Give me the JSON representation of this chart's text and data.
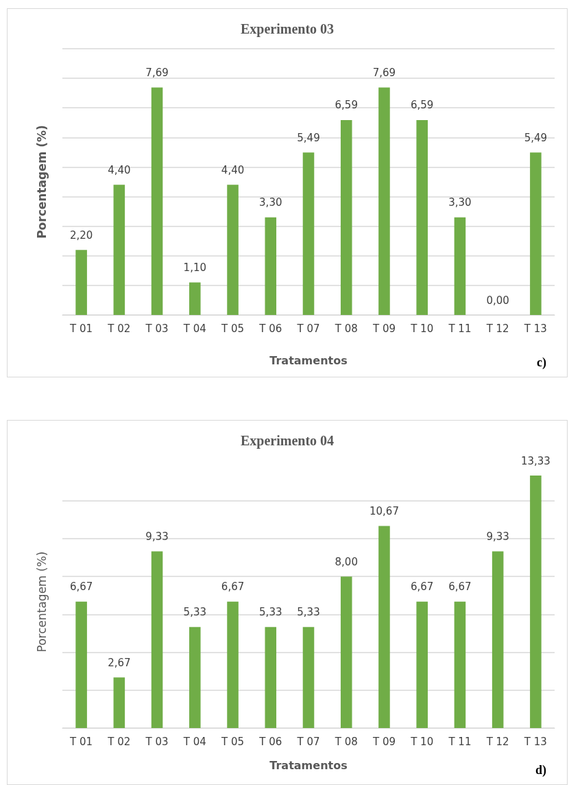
{
  "chart_data": [
    {
      "type": "bar",
      "title": "Experimento 03",
      "xlabel": "Tratamentos",
      "ylabel": "Porcentagem (%)",
      "categories": [
        "T 01",
        "T 02",
        "T 03",
        "T 04",
        "T 05",
        "T 06",
        "T 07",
        "T 08",
        "T 09",
        "T 10",
        "T 11",
        "T 12",
        "T 13"
      ],
      "values": [
        2.2,
        4.4,
        7.69,
        1.1,
        4.4,
        3.3,
        5.49,
        6.59,
        7.69,
        6.59,
        3.3,
        0.0,
        5.49
      ],
      "value_labels": [
        "2,20",
        "4,40",
        "7,69",
        "1,10",
        "4,40",
        "3,30",
        "5,49",
        "6,59",
        "7,69",
        "6,59",
        "3,30",
        "0,00",
        "5,49"
      ],
      "color": "#70ad47",
      "ylim": [
        0,
        9
      ],
      "yticks": [
        {
          "value": 0,
          "label": null
        },
        {
          "value": 1,
          "label": null
        },
        {
          "value": 2,
          "label": null
        },
        {
          "value": 3,
          "label": null
        },
        {
          "value": 4,
          "label": null
        },
        {
          "value": 5,
          "label": null
        },
        {
          "value": 6,
          "label": null
        },
        {
          "value": 7,
          "label": null
        },
        {
          "value": 8,
          "label": null
        },
        {
          "value": 9,
          "label": null
        }
      ],
      "grid": "y",
      "tick_labels": "x",
      "annotations": [
        "c)"
      ]
    },
    {
      "type": "bar",
      "title": "Experimento 04",
      "xlabel": "Tratamentos",
      "ylabel": "Porcentagem (%)",
      "categories": [
        "T 01",
        "T 02",
        "T 03",
        "T 04",
        "T 05",
        "T 06",
        "T 07",
        "T 08",
        "T 09",
        "T 10",
        "T 11",
        "T 12",
        "T 13"
      ],
      "values": [
        6.67,
        2.67,
        9.33,
        5.33,
        6.67,
        5.33,
        5.33,
        8.0,
        10.67,
        6.67,
        6.67,
        9.33,
        13.33
      ],
      "value_labels": [
        "6,67",
        "2,67",
        "9,33",
        "5,33",
        "6,67",
        "5,33",
        "5,33",
        "8,00",
        "10,67",
        "6,67",
        "6,67",
        "9,33",
        "13,33"
      ],
      "color": "#70ad47",
      "yticks": [
        {
          "value": 0,
          "label": null
        },
        {
          "value": 2,
          "label": null
        },
        {
          "value": 4,
          "label": null
        },
        {
          "value": 6,
          "label": null
        },
        {
          "value": 8,
          "label": null
        },
        {
          "value": 10,
          "label": null
        },
        {
          "value": 12,
          "label": null
        }
      ],
      "grid": "y",
      "tick_labels": "x",
      "annotations": [
        "d)"
      ]
    }
  ]
}
